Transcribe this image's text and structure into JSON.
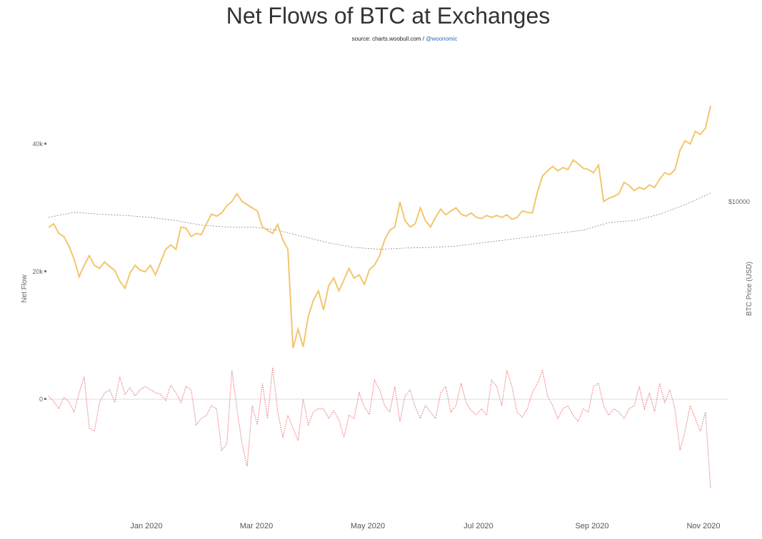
{
  "chart_data": {
    "type": "line",
    "title": "Net Flows of BTC at Exchanges",
    "source_prefix": "source: charts.woobull.com / ",
    "source_handle": "@woonomic",
    "ylabel_left": "Net Flow",
    "ylabel_right": "BTC Price (USD)",
    "left_ticks": [
      "40k",
      "20k",
      "0"
    ],
    "right_ticks": [
      "$10000"
    ],
    "x_ticks": [
      "Jan 2020",
      "Mar 2020",
      "May 2020",
      "Jul 2020",
      "Sep 2020",
      "Nov 2020"
    ],
    "colors": {
      "cumulative": "#f2c66d",
      "daily": "#e88080",
      "price": "#888888",
      "zero": "#dddddd"
    },
    "series": [
      {
        "values": [
          [
            0,
            26900
          ],
          [
            2,
            27500
          ],
          [
            4,
            26000
          ],
          [
            6,
            25500
          ],
          [
            8,
            24000
          ],
          [
            10,
            22000
          ],
          [
            12,
            19200
          ],
          [
            14,
            21000
          ],
          [
            16,
            22500
          ],
          [
            18,
            21000
          ],
          [
            20,
            20500
          ],
          [
            22,
            21500
          ],
          [
            24,
            20800
          ],
          [
            26,
            20200
          ],
          [
            28,
            18500
          ],
          [
            30,
            17400
          ],
          [
            32,
            19800
          ],
          [
            34,
            21000
          ],
          [
            36,
            20200
          ],
          [
            38,
            20000
          ],
          [
            40,
            21000
          ],
          [
            42,
            19500
          ],
          [
            44,
            21500
          ],
          [
            46,
            23500
          ],
          [
            48,
            24200
          ],
          [
            50,
            23500
          ],
          [
            52,
            27000
          ],
          [
            54,
            26800
          ],
          [
            56,
            25500
          ],
          [
            58,
            26000
          ],
          [
            60,
            25800
          ],
          [
            62,
            27500
          ],
          [
            64,
            29000
          ],
          [
            66,
            28700
          ],
          [
            68,
            29200
          ],
          [
            70,
            30300
          ],
          [
            72,
            31000
          ],
          [
            74,
            32200
          ],
          [
            76,
            31000
          ],
          [
            78,
            30500
          ],
          [
            80,
            30000
          ],
          [
            82,
            29500
          ],
          [
            84,
            27000
          ],
          [
            86,
            26500
          ],
          [
            88,
            26000
          ],
          [
            90,
            27400
          ],
          [
            92,
            25000
          ],
          [
            94,
            23500
          ],
          [
            96,
            8000
          ],
          [
            98,
            11000
          ],
          [
            100,
            8200
          ],
          [
            102,
            13000
          ],
          [
            104,
            15500
          ],
          [
            106,
            17000
          ],
          [
            108,
            14000
          ],
          [
            110,
            17800
          ],
          [
            112,
            19000
          ],
          [
            114,
            17000
          ],
          [
            116,
            18700
          ],
          [
            118,
            20500
          ],
          [
            120,
            19000
          ],
          [
            122,
            19500
          ],
          [
            124,
            18000
          ],
          [
            126,
            20300
          ],
          [
            128,
            21000
          ],
          [
            130,
            22500
          ],
          [
            132,
            25000
          ],
          [
            134,
            26500
          ],
          [
            136,
            27000
          ],
          [
            138,
            30900
          ],
          [
            140,
            28000
          ],
          [
            142,
            27000
          ],
          [
            144,
            27500
          ],
          [
            146,
            30000
          ],
          [
            148,
            28000
          ],
          [
            150,
            27000
          ],
          [
            152,
            28500
          ],
          [
            154,
            29800
          ],
          [
            156,
            28900
          ],
          [
            158,
            29500
          ],
          [
            160,
            30000
          ],
          [
            162,
            29000
          ],
          [
            164,
            28700
          ],
          [
            166,
            29200
          ],
          [
            168,
            28500
          ],
          [
            170,
            28300
          ],
          [
            172,
            28800
          ],
          [
            174,
            28500
          ],
          [
            176,
            28800
          ],
          [
            178,
            28500
          ],
          [
            180,
            28900
          ],
          [
            182,
            28200
          ],
          [
            184,
            28500
          ],
          [
            186,
            29500
          ],
          [
            188,
            29300
          ],
          [
            190,
            29200
          ],
          [
            192,
            32500
          ],
          [
            194,
            35000
          ],
          [
            196,
            35800
          ],
          [
            198,
            36500
          ],
          [
            200,
            35800
          ],
          [
            202,
            36300
          ],
          [
            204,
            36000
          ],
          [
            206,
            37500
          ],
          [
            208,
            36900
          ],
          [
            210,
            36200
          ],
          [
            212,
            36000
          ],
          [
            214,
            35500
          ],
          [
            216,
            36700
          ],
          [
            218,
            31000
          ],
          [
            220,
            31500
          ],
          [
            222,
            31800
          ],
          [
            224,
            32200
          ],
          [
            226,
            34000
          ],
          [
            228,
            33500
          ],
          [
            230,
            32700
          ],
          [
            232,
            33200
          ],
          [
            234,
            32900
          ],
          [
            236,
            33600
          ],
          [
            238,
            33200
          ],
          [
            240,
            34500
          ],
          [
            242,
            35500
          ],
          [
            244,
            35200
          ],
          [
            246,
            36000
          ],
          [
            248,
            39000
          ],
          [
            250,
            40500
          ],
          [
            252,
            40000
          ],
          [
            254,
            42000
          ],
          [
            256,
            41500
          ],
          [
            258,
            42500
          ],
          [
            260,
            46000
          ]
        ]
      },
      {
        "values": [
          [
            0,
            500
          ],
          [
            2,
            -300
          ],
          [
            4,
            -1500
          ],
          [
            6,
            300
          ],
          [
            8,
            -400
          ],
          [
            10,
            -2000
          ],
          [
            12,
            1000
          ],
          [
            14,
            3500
          ],
          [
            16,
            -4500
          ],
          [
            18,
            -5000
          ],
          [
            20,
            -500
          ],
          [
            22,
            1000
          ],
          [
            24,
            1500
          ],
          [
            26,
            -500
          ],
          [
            28,
            3500
          ],
          [
            30,
            800
          ],
          [
            32,
            1800
          ],
          [
            34,
            500
          ],
          [
            36,
            1500
          ],
          [
            38,
            2000
          ],
          [
            40,
            1500
          ],
          [
            42,
            1000
          ],
          [
            44,
            800
          ],
          [
            46,
            -200
          ],
          [
            48,
            2200
          ],
          [
            50,
            1000
          ],
          [
            52,
            -500
          ],
          [
            54,
            2000
          ],
          [
            56,
            1500
          ],
          [
            58,
            -4000
          ],
          [
            60,
            -3000
          ],
          [
            62,
            -2500
          ],
          [
            64,
            -1000
          ],
          [
            66,
            -1500
          ],
          [
            68,
            -8000
          ],
          [
            70,
            -7000
          ],
          [
            72,
            4500
          ],
          [
            74,
            -1500
          ],
          [
            76,
            -7000
          ],
          [
            78,
            -10500
          ],
          [
            80,
            -1000
          ],
          [
            82,
            -4000
          ],
          [
            84,
            2500
          ],
          [
            86,
            -3000
          ],
          [
            88,
            5000
          ],
          [
            90,
            -2000
          ],
          [
            92,
            -6000
          ],
          [
            94,
            -2500
          ],
          [
            96,
            -4500
          ],
          [
            98,
            -6500
          ],
          [
            100,
            0
          ],
          [
            102,
            -4000
          ],
          [
            104,
            -2000
          ],
          [
            106,
            -1500
          ],
          [
            108,
            -1500
          ],
          [
            110,
            -3000
          ],
          [
            112,
            -1800
          ],
          [
            114,
            -3200
          ],
          [
            116,
            -6000
          ],
          [
            118,
            -2500
          ],
          [
            120,
            -3000
          ],
          [
            122,
            1000
          ],
          [
            124,
            -1200
          ],
          [
            126,
            -2400
          ],
          [
            128,
            3000
          ],
          [
            130,
            1500
          ],
          [
            132,
            -1000
          ],
          [
            134,
            -2000
          ],
          [
            136,
            2000
          ],
          [
            138,
            -3500
          ],
          [
            140,
            500
          ],
          [
            142,
            1500
          ],
          [
            144,
            -1200
          ],
          [
            146,
            -3000
          ],
          [
            148,
            -1000
          ],
          [
            150,
            -2000
          ],
          [
            152,
            -3000
          ],
          [
            154,
            1000
          ],
          [
            156,
            2000
          ],
          [
            158,
            -2000
          ],
          [
            160,
            -1000
          ],
          [
            162,
            2500
          ],
          [
            164,
            -500
          ],
          [
            166,
            -1800
          ],
          [
            168,
            -2400
          ],
          [
            170,
            -1500
          ],
          [
            172,
            -2500
          ],
          [
            174,
            3000
          ],
          [
            176,
            2000
          ],
          [
            178,
            -1000
          ],
          [
            180,
            4500
          ],
          [
            182,
            2000
          ],
          [
            184,
            -2000
          ],
          [
            186,
            -2800
          ],
          [
            188,
            -1500
          ],
          [
            190,
            1000
          ],
          [
            192,
            2500
          ],
          [
            194,
            4500
          ],
          [
            196,
            500
          ],
          [
            198,
            -1000
          ],
          [
            200,
            -3000
          ],
          [
            202,
            -1500
          ],
          [
            204,
            -1000
          ],
          [
            206,
            -2500
          ],
          [
            208,
            -3500
          ],
          [
            210,
            -1500
          ],
          [
            212,
            -2000
          ],
          [
            214,
            2000
          ],
          [
            216,
            2500
          ],
          [
            218,
            -1000
          ],
          [
            220,
            -2500
          ],
          [
            222,
            -1500
          ],
          [
            224,
            -2000
          ],
          [
            226,
            -3000
          ],
          [
            228,
            -1500
          ],
          [
            230,
            -1000
          ],
          [
            232,
            2000
          ],
          [
            234,
            -1500
          ],
          [
            236,
            1000
          ],
          [
            238,
            -2000
          ],
          [
            240,
            2500
          ],
          [
            242,
            -500
          ],
          [
            244,
            1500
          ],
          [
            246,
            -1500
          ],
          [
            248,
            -8000
          ],
          [
            250,
            -5000
          ],
          [
            252,
            -1000
          ],
          [
            254,
            -3000
          ],
          [
            256,
            -5000
          ],
          [
            258,
            -2000
          ],
          [
            260,
            -14000
          ]
        ]
      },
      {
        "values": [
          [
            0,
            28500
          ],
          [
            10,
            29300
          ],
          [
            20,
            29000
          ],
          [
            30,
            28800
          ],
          [
            40,
            28500
          ],
          [
            50,
            28000
          ],
          [
            60,
            27300
          ],
          [
            70,
            27000
          ],
          [
            80,
            27000
          ],
          [
            90,
            26500
          ],
          [
            100,
            25500
          ],
          [
            110,
            24500
          ],
          [
            120,
            23800
          ],
          [
            130,
            23500
          ],
          [
            140,
            23700
          ],
          [
            150,
            23800
          ],
          [
            160,
            24000
          ],
          [
            170,
            24500
          ],
          [
            180,
            25000
          ],
          [
            190,
            25500
          ],
          [
            200,
            26000
          ],
          [
            210,
            26500
          ],
          [
            220,
            27700
          ],
          [
            230,
            28000
          ],
          [
            240,
            29000
          ],
          [
            250,
            30500
          ],
          [
            260,
            32300
          ]
        ]
      }
    ],
    "ylim_left": [
      -16000,
      50000
    ],
    "xlim_days": [
      0,
      260
    ],
    "grid": false,
    "legend": "none"
  }
}
